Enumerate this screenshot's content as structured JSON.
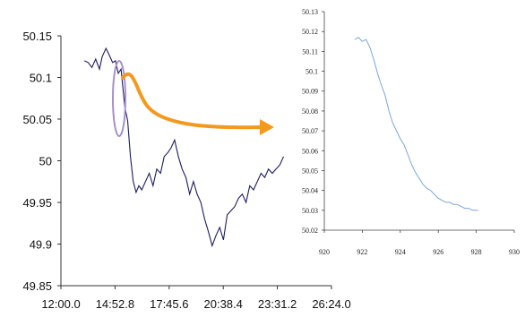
{
  "chart_data": [
    {
      "type": "line",
      "title": "",
      "xlabel": "",
      "ylabel": "",
      "categories": [
        "12:00.0",
        "14:52.8",
        "17:45.6",
        "20:38.4",
        "23:31.2",
        "26:24.0"
      ],
      "y_ticks": [
        "49.85",
        "49.9",
        "49.95",
        "50",
        "50.05",
        "50.1",
        "50.15"
      ],
      "ylim": [
        49.85,
        50.15
      ],
      "grid": false,
      "series": [
        {
          "color": "#1c1c5e",
          "x": [
            "13:15.0",
            "13:27.0",
            "13:39.0",
            "13:51.0",
            "14:03.0",
            "14:12.0",
            "14:24.0",
            "14:33.0",
            "14:45.0",
            "14:54.0",
            "15:03.0",
            "15:12.0",
            "15:24.0",
            "15:33.0",
            "15:42.0",
            "15:51.0",
            "16:00.0",
            "16:09.0",
            "16:18.0",
            "16:30.0",
            "16:42.0",
            "16:54.0",
            "17:06.0",
            "17:18.0",
            "17:30.0",
            "17:42.0",
            "17:51.0",
            "18:03.0",
            "18:15.0",
            "18:27.0",
            "18:39.0",
            "18:51.0",
            "19:03.0",
            "19:15.0",
            "19:27.0",
            "19:39.0",
            "19:51.0",
            "20:03.0",
            "20:15.0",
            "20:27.0",
            "20:39.0",
            "20:51.0",
            "21:03.0",
            "21:15.0",
            "21:27.0",
            "21:39.0",
            "21:51.0",
            "22:03.0",
            "22:15.0",
            "22:27.0",
            "22:39.0",
            "22:51.0",
            "23:03.0",
            "23:15.0",
            "23:27.0",
            "23:39.0",
            "23:51.0"
          ],
          "values": [
            50.12,
            50.118,
            50.112,
            50.122,
            50.11,
            50.125,
            50.135,
            50.128,
            50.118,
            50.12,
            50.105,
            50.11,
            50.065,
            50.048,
            50.005,
            49.975,
            49.962,
            49.97,
            49.965,
            49.975,
            49.985,
            49.97,
            49.99,
            49.985,
            50.005,
            50.01,
            50.015,
            50.025,
            50.005,
            49.99,
            49.98,
            49.96,
            49.975,
            49.96,
            49.95,
            49.93,
            49.915,
            49.898,
            49.91,
            49.92,
            49.905,
            49.935,
            49.94,
            49.945,
            49.955,
            49.96,
            49.95,
            49.97,
            49.965,
            49.975,
            49.985,
            49.98,
            49.99,
            49.985,
            49.99,
            49.995,
            50.005
          ]
        }
      ]
    },
    {
      "type": "line",
      "title": "",
      "xlabel": "",
      "ylabel": "",
      "x_ticks": [
        "920",
        "922",
        "924",
        "926",
        "928",
        "930"
      ],
      "xlim": [
        920,
        930
      ],
      "y_ticks": [
        "50.02",
        "50.03",
        "50.04",
        "50.05",
        "50.06",
        "50.07",
        "50.08",
        "50.09",
        "50.1",
        "50.11",
        "50.12",
        "50.13"
      ],
      "ylim": [
        50.02,
        50.13
      ],
      "grid": false,
      "series": [
        {
          "color": "#7aa8d8",
          "x": [
            921.6,
            921.8,
            922.0,
            922.2,
            922.4,
            922.6,
            922.8,
            923.0,
            923.2,
            923.4,
            923.6,
            923.8,
            924.0,
            924.2,
            924.4,
            924.6,
            924.8,
            925.0,
            925.2,
            925.4,
            925.6,
            925.8,
            926.0,
            926.2,
            926.4,
            926.6,
            926.8,
            927.0,
            927.2,
            927.4,
            927.6,
            927.8,
            928.0,
            928.1
          ],
          "values": [
            50.116,
            50.117,
            50.115,
            50.116,
            50.112,
            50.106,
            50.099,
            50.093,
            50.088,
            50.08,
            50.074,
            50.07,
            50.066,
            50.063,
            50.058,
            50.053,
            50.049,
            50.046,
            50.043,
            50.041,
            50.04,
            50.038,
            50.036,
            50.035,
            50.034,
            50.034,
            50.033,
            50.033,
            50.032,
            50.031,
            50.031,
            50.03,
            50.03,
            50.03
          ]
        }
      ]
    }
  ],
  "annotations": {
    "ellipse_color": "#a98fcc",
    "arrow_color": "#f39a1e"
  }
}
